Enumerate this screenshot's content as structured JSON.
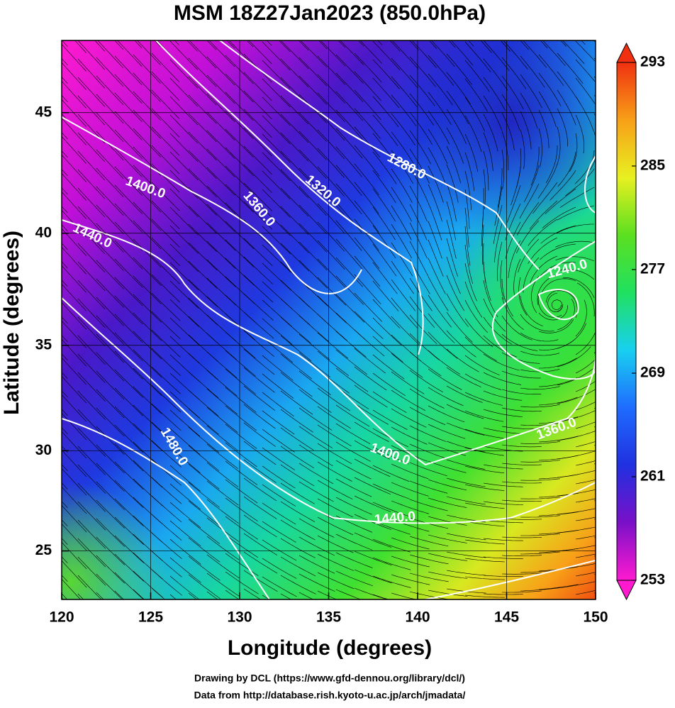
{
  "chart_data": {
    "type": "map",
    "projection": "mercator",
    "title": "MSM 18Z27Jan2023 (850.0hPa)",
    "x_label": "Longitude (degrees)",
    "y_label": "Latitude  (degrees)",
    "xlim": [
      120,
      150
    ],
    "ylim": [
      22.5,
      47.8
    ],
    "xticks": [
      120,
      125,
      130,
      135,
      140,
      145,
      150
    ],
    "yticks": [
      25,
      30,
      35,
      40,
      45
    ],
    "grid": true,
    "colorbar": {
      "lim": [
        253,
        293
      ],
      "ticks": [
        253,
        261,
        269,
        277,
        285,
        293
      ],
      "colors": [
        "#ff1ad0",
        "#7a10c8",
        "#2030e0",
        "#1f6cff",
        "#18d0f0",
        "#20e060",
        "#5be020",
        "#e8f020",
        "#f8a018",
        "#f03010"
      ]
    },
    "contour_labels": [
      {
        "value": 1280,
        "label": "1280.0"
      },
      {
        "value": 1320,
        "label": "1320.0"
      },
      {
        "value": 1360,
        "label": "1360.0"
      },
      {
        "value": 1400,
        "label": "1400.0"
      },
      {
        "value": 1440,
        "label": "1440.0"
      },
      {
        "value": 1240,
        "label": "1240.0"
      },
      {
        "value": 1360,
        "label": "1360.0"
      },
      {
        "value": 1400,
        "label": "1400.0"
      },
      {
        "value": 1440,
        "label": "1440.0"
      },
      {
        "value": 1480,
        "label": "1480.0"
      }
    ],
    "credits": [
      "Drawing by DCL (https://www.gfd-dennou.org/library/dcl/)",
      "Data from http://database.rish.kyoto-u.ac.jp/arch/jmadata/"
    ]
  }
}
